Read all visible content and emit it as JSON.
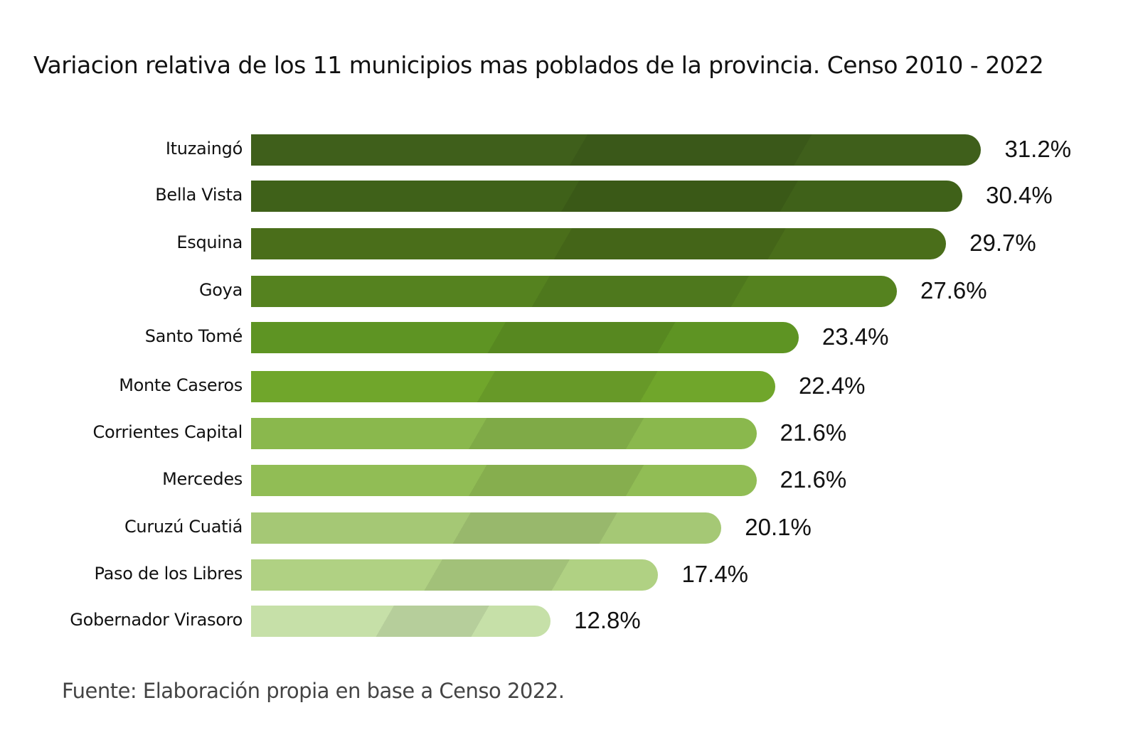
{
  "chart_data": {
    "type": "bar",
    "orientation": "horizontal",
    "title": "Variacion relativa de los 11 municipios mas poblados de la provincia. Censo 2010 - 2022",
    "categories": [
      "Ituzaingó",
      "Bella Vista",
      "Esquina",
      "Goya",
      "Santo Tomé",
      "Monte Caseros",
      "Corrientes Capital",
      "Mercedes",
      "Curuzú Cuatiá",
      "Paso de los Libres",
      "Gobernador Virasoro"
    ],
    "values": [
      31.2,
      30.4,
      29.7,
      27.6,
      23.4,
      22.4,
      21.6,
      21.6,
      20.1,
      17.4,
      12.8
    ],
    "value_labels": [
      "31.2%",
      "30.4%",
      "29.7%",
      "27.6%",
      "23.4%",
      "22.4%",
      "21.6%",
      "21.6%",
      "20.1%",
      "17.4%",
      "12.8%"
    ],
    "unit": "%",
    "colors": [
      "#3f5f1b",
      "#3f6119",
      "#4a6e1a",
      "#55821f",
      "#5e9423",
      "#70a62b",
      "#8ab84d",
      "#91bd55",
      "#a5c875",
      "#b0d183",
      "#c6e0a8"
    ],
    "grid": false,
    "legend": "none"
  },
  "source": "Fuente: Elaboración propia en base a Censo 2022."
}
